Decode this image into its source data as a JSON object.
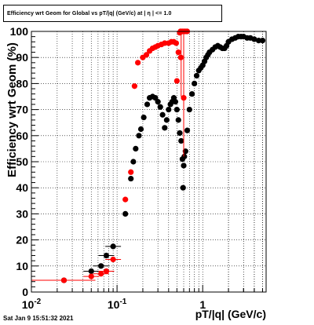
{
  "title": "Efficiency wrt Geom for Global vs pT/|q| (GeV/c) at | η | <= 1.0",
  "timestamp": "Sat Jan  9 15:51:32 2021",
  "colors": {
    "series_black": "#000000",
    "series_red": "#ff0000",
    "grid": "#000000",
    "background": "#ffffff"
  },
  "chart_data": {
    "type": "scatter",
    "title": "Efficiency wrt Geom for Global vs pT/|q| (GeV/c) at | η | <= 1.0",
    "xlabel": "pT/|q| (GeV/c)",
    "ylabel": "Efficiency wrt Geom (%)",
    "xscale": "log",
    "xlim": [
      0.01,
      5.5
    ],
    "ylim": [
      0,
      100
    ],
    "grid": true,
    "x_tick_labels": [
      {
        "value": 0.01,
        "base": "10",
        "exp": "-2"
      },
      {
        "value": 0.1,
        "base": "10",
        "exp": "-1"
      },
      {
        "value": 1,
        "base": "1",
        "exp": ""
      }
    ],
    "y_ticks": [
      0,
      10,
      20,
      30,
      40,
      50,
      60,
      70,
      80,
      90,
      100
    ],
    "series": [
      {
        "color": "black",
        "points": [
          [
            0.024,
            4.5
          ],
          [
            0.05,
            8
          ],
          [
            0.065,
            10
          ],
          [
            0.075,
            14
          ],
          [
            0.09,
            17.5
          ],
          [
            0.125,
            30
          ],
          [
            0.145,
            43.5
          ],
          [
            0.155,
            50
          ],
          [
            0.165,
            55
          ],
          [
            0.18,
            60
          ],
          [
            0.19,
            62.5
          ],
          [
            0.205,
            67
          ],
          [
            0.225,
            72
          ],
          [
            0.24,
            74.5
          ],
          [
            0.26,
            75
          ],
          [
            0.28,
            74.5
          ],
          [
            0.3,
            73
          ],
          [
            0.32,
            71
          ],
          [
            0.34,
            68
          ],
          [
            0.36,
            63
          ],
          [
            0.38,
            66
          ],
          [
            0.4,
            70
          ],
          [
            0.42,
            72
          ],
          [
            0.44,
            73
          ],
          [
            0.46,
            74.5
          ],
          [
            0.48,
            73
          ],
          [
            0.5,
            70
          ],
          [
            0.52,
            66
          ],
          [
            0.54,
            61
          ],
          [
            0.56,
            58
          ],
          [
            0.58,
            51
          ],
          [
            0.6,
            48.5
          ],
          [
            0.59,
            40
          ],
          [
            0.61,
            52
          ],
          [
            0.63,
            54
          ],
          [
            0.66,
            62
          ],
          [
            0.7,
            70
          ],
          [
            0.75,
            76
          ],
          [
            0.8,
            80
          ],
          [
            0.85,
            83
          ],
          [
            0.9,
            85
          ],
          [
            0.95,
            86
          ],
          [
            1.0,
            87
          ],
          [
            1.05,
            88.5
          ],
          [
            1.1,
            90
          ],
          [
            1.15,
            91
          ],
          [
            1.2,
            92
          ],
          [
            1.3,
            93
          ],
          [
            1.4,
            94
          ],
          [
            1.5,
            94.5
          ],
          [
            1.6,
            94
          ],
          [
            1.7,
            93.5
          ],
          [
            1.8,
            93.5
          ],
          [
            1.9,
            94.5
          ],
          [
            2.0,
            96
          ],
          [
            2.2,
            97
          ],
          [
            2.4,
            97.5
          ],
          [
            2.6,
            98
          ],
          [
            2.8,
            98
          ],
          [
            3.0,
            98
          ],
          [
            3.3,
            97.5
          ],
          [
            3.6,
            97.5
          ],
          [
            4.0,
            97
          ],
          [
            4.5,
            96.5
          ],
          [
            5.0,
            96.5
          ]
        ]
      },
      {
        "color": "red",
        "points": [
          [
            0.024,
            4.5
          ],
          [
            0.05,
            6
          ],
          [
            0.065,
            7
          ],
          [
            0.075,
            8
          ],
          [
            0.09,
            12.5
          ],
          [
            0.125,
            35.5
          ],
          [
            0.145,
            46
          ],
          [
            0.16,
            79
          ],
          [
            0.175,
            88
          ],
          [
            0.2,
            90
          ],
          [
            0.22,
            91
          ],
          [
            0.24,
            92.5
          ],
          [
            0.26,
            93.5
          ],
          [
            0.28,
            94
          ],
          [
            0.3,
            94.5
          ],
          [
            0.33,
            95
          ],
          [
            0.36,
            95.5
          ],
          [
            0.4,
            95.5
          ],
          [
            0.43,
            96
          ],
          [
            0.46,
            96
          ],
          [
            0.49,
            95.5
          ],
          [
            0.5,
            81
          ],
          [
            0.52,
            92
          ],
          [
            0.54,
            99.5
          ],
          [
            0.56,
            100
          ],
          [
            0.58,
            100
          ],
          [
            0.6,
            100
          ],
          [
            0.62,
            100
          ],
          [
            0.64,
            100
          ],
          [
            0.66,
            100
          ],
          [
            0.55,
            100
          ],
          [
            0.555,
            90
          ],
          [
            0.6,
            74.5
          ]
        ]
      }
    ]
  }
}
